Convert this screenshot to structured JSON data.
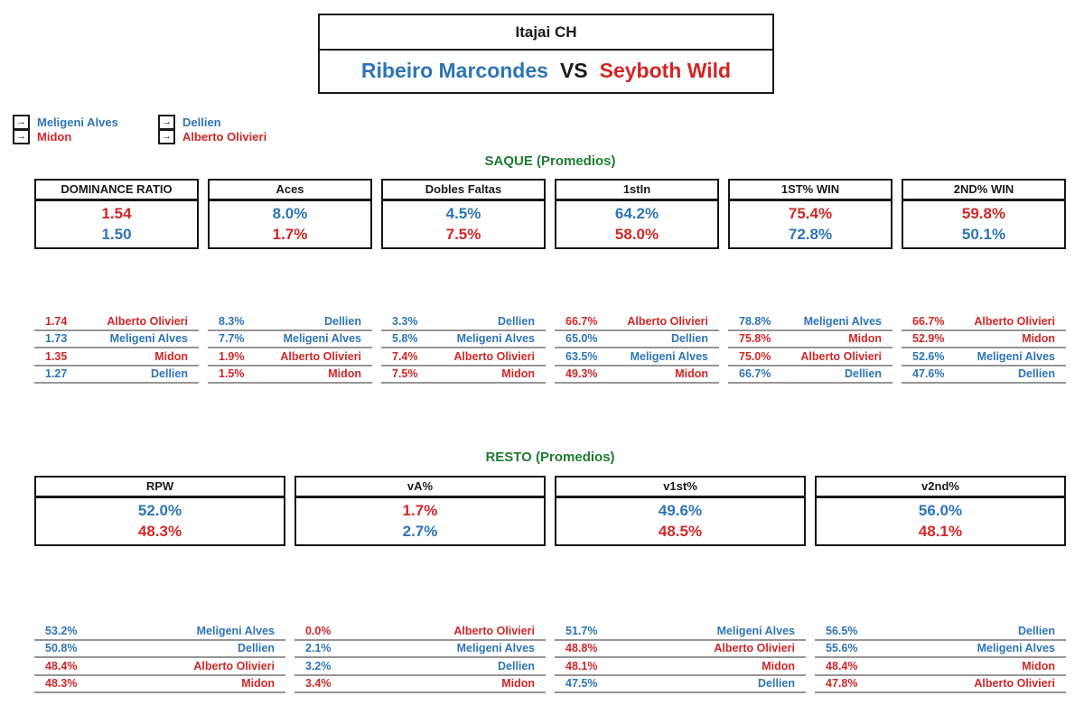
{
  "colors": {
    "blue": "#2E75B6",
    "red": "#D02727",
    "green": "#1E7B33"
  },
  "title": {
    "tournament": "Itajai CH",
    "player1": "Ribeiro Marcondes",
    "vs": "VS",
    "player2": "Seyboth Wild"
  },
  "legend": {
    "arrow": "→",
    "groups": [
      {
        "items": [
          {
            "label": "Meligeni Alves",
            "color": "blue"
          },
          {
            "label": "Midon",
            "color": "red"
          }
        ]
      },
      {
        "items": [
          {
            "label": "Dellien",
            "color": "blue"
          },
          {
            "label": "Alberto Olivieri",
            "color": "red"
          }
        ]
      }
    ]
  },
  "sections": [
    {
      "heading": "SAQUE (Promedios)",
      "boxes": [
        {
          "header": "DOMINANCE RATIO",
          "values": [
            {
              "text": "1.54",
              "color": "red"
            },
            {
              "text": "1.50",
              "color": "blue"
            }
          ]
        },
        {
          "header": "Aces",
          "values": [
            {
              "text": "8.0%",
              "color": "blue"
            },
            {
              "text": "1.7%",
              "color": "red"
            }
          ]
        },
        {
          "header": "Dobles Faltas",
          "values": [
            {
              "text": "4.5%",
              "color": "blue"
            },
            {
              "text": "7.5%",
              "color": "red"
            }
          ]
        },
        {
          "header": "1stIn",
          "values": [
            {
              "text": "64.2%",
              "color": "blue"
            },
            {
              "text": "58.0%",
              "color": "red"
            }
          ]
        },
        {
          "header": "1ST% WIN",
          "values": [
            {
              "text": "75.4%",
              "color": "red"
            },
            {
              "text": "72.8%",
              "color": "blue"
            }
          ]
        },
        {
          "header": "2ND% WIN",
          "values": [
            {
              "text": "59.8%",
              "color": "red"
            },
            {
              "text": "50.1%",
              "color": "blue"
            }
          ]
        }
      ],
      "rankings": [
        [
          {
            "value": "1.74",
            "name": "Alberto Olivieri",
            "color": "red"
          },
          {
            "value": "1.73",
            "name": "Meligeni Alves",
            "color": "blue"
          },
          {
            "value": "1.35",
            "name": "Midon",
            "color": "red"
          },
          {
            "value": "1.27",
            "name": "Dellien",
            "color": "blue"
          }
        ],
        [
          {
            "value": "8.3%",
            "name": "Dellien",
            "color": "blue"
          },
          {
            "value": "7.7%",
            "name": "Meligeni Alves",
            "color": "blue"
          },
          {
            "value": "1.9%",
            "name": "Alberto Olivieri",
            "color": "red"
          },
          {
            "value": "1.5%",
            "name": "Midon",
            "color": "red"
          }
        ],
        [
          {
            "value": "3.3%",
            "name": "Dellien",
            "color": "blue"
          },
          {
            "value": "5.8%",
            "name": "Meligeni Alves",
            "color": "blue"
          },
          {
            "value": "7.4%",
            "name": "Alberto Olivieri",
            "color": "red"
          },
          {
            "value": "7.5%",
            "name": "Midon",
            "color": "red"
          }
        ],
        [
          {
            "value": "66.7%",
            "name": "Alberto Olivieri",
            "color": "red"
          },
          {
            "value": "65.0%",
            "name": "Dellien",
            "color": "blue"
          },
          {
            "value": "63.5%",
            "name": "Meligeni Alves",
            "color": "blue"
          },
          {
            "value": "49.3%",
            "name": "Midon",
            "color": "red"
          }
        ],
        [
          {
            "value": "78.8%",
            "name": "Meligeni Alves",
            "color": "blue"
          },
          {
            "value": "75.8%",
            "name": "Midon",
            "color": "red"
          },
          {
            "value": "75.0%",
            "name": "Alberto Olivieri",
            "color": "red"
          },
          {
            "value": "66.7%",
            "name": "Dellien",
            "color": "blue"
          }
        ],
        [
          {
            "value": "66.7%",
            "name": "Alberto Olivieri",
            "color": "red"
          },
          {
            "value": "52.9%",
            "name": "Midon",
            "color": "red"
          },
          {
            "value": "52.6%",
            "name": "Meligeni Alves",
            "color": "blue"
          },
          {
            "value": "47.6%",
            "name": "Dellien",
            "color": "blue"
          }
        ]
      ]
    },
    {
      "heading": "RESTO (Promedios)",
      "boxes": [
        {
          "header": "RPW",
          "values": [
            {
              "text": "52.0%",
              "color": "blue"
            },
            {
              "text": "48.3%",
              "color": "red"
            }
          ]
        },
        {
          "header": "vA%",
          "values": [
            {
              "text": "1.7%",
              "color": "red"
            },
            {
              "text": "2.7%",
              "color": "blue"
            }
          ]
        },
        {
          "header": "v1st%",
          "values": [
            {
              "text": "49.6%",
              "color": "blue"
            },
            {
              "text": "48.5%",
              "color": "red"
            }
          ]
        },
        {
          "header": "v2nd%",
          "values": [
            {
              "text": "56.0%",
              "color": "blue"
            },
            {
              "text": "48.1%",
              "color": "red"
            }
          ]
        }
      ],
      "rankings": [
        [
          {
            "value": "53.2%",
            "name": "Meligeni Alves",
            "color": "blue"
          },
          {
            "value": "50.8%",
            "name": "Dellien",
            "color": "blue"
          },
          {
            "value": "48.4%",
            "name": "Alberto Olivieri",
            "color": "red"
          },
          {
            "value": "48.3%",
            "name": "Midon",
            "color": "red"
          }
        ],
        [
          {
            "value": "0.0%",
            "name": "Alberto Olivieri",
            "color": "red"
          },
          {
            "value": "2.1%",
            "name": "Meligeni Alves",
            "color": "blue"
          },
          {
            "value": "3.2%",
            "name": "Dellien",
            "color": "blue"
          },
          {
            "value": "3.4%",
            "name": "Midon",
            "color": "red"
          }
        ],
        [
          {
            "value": "51.7%",
            "name": "Meligeni Alves",
            "color": "blue"
          },
          {
            "value": "48.8%",
            "name": "Alberto Olivieri",
            "color": "red"
          },
          {
            "value": "48.1%",
            "name": "Midon",
            "color": "red"
          },
          {
            "value": "47.5%",
            "name": "Dellien",
            "color": "blue"
          }
        ],
        [
          {
            "value": "56.5%",
            "name": "Dellien",
            "color": "blue"
          },
          {
            "value": "55.6%",
            "name": "Meligeni Alves",
            "color": "blue"
          },
          {
            "value": "48.4%",
            "name": "Midon",
            "color": "red"
          },
          {
            "value": "47.8%",
            "name": "Alberto Olivieri",
            "color": "red"
          }
        ]
      ]
    }
  ]
}
